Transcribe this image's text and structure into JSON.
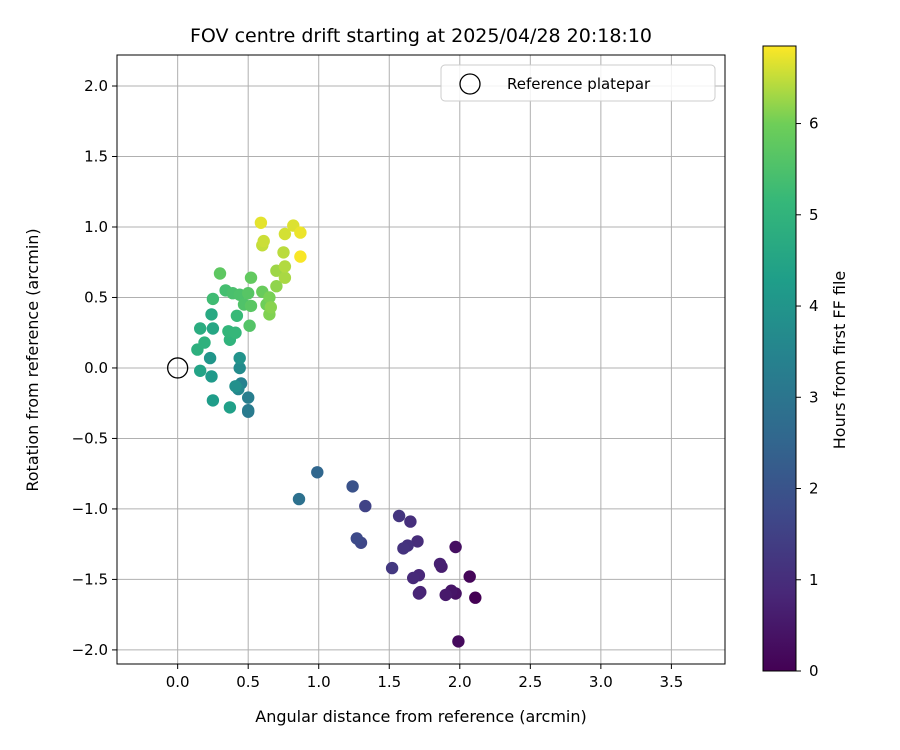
{
  "chart_data": {
    "type": "scatter",
    "title": "FOV centre drift starting at 2025/04/28 20:18:10",
    "xlabel": "Angular distance from reference (arcmin)",
    "ylabel": "Rotation from reference (arcmin)",
    "xlim": [
      -0.43,
      3.88
    ],
    "ylim": [
      -2.1,
      2.22
    ],
    "xticks": [
      0.0,
      0.5,
      1.0,
      1.5,
      2.0,
      2.5,
      3.0,
      3.5
    ],
    "xtick_labels": [
      "0.0",
      "0.5",
      "1.0",
      "1.5",
      "2.0",
      "2.5",
      "3.0",
      "3.5"
    ],
    "yticks": [
      2.0,
      1.5,
      1.0,
      0.5,
      0.0,
      -0.5,
      -1.0,
      -1.5,
      -2.0
    ],
    "ytick_labels": [
      "2.0",
      "1.5",
      "1.0",
      "0.5",
      "0.0",
      "−0.5",
      "−1.0",
      "−1.5",
      "−2.0"
    ],
    "grid": true,
    "legend": {
      "position": "top-right",
      "entries": [
        "Reference platepar"
      ]
    },
    "reference_point": {
      "name": "Reference platepar",
      "x": 0.0,
      "y": 0.0
    },
    "colorbar": {
      "label": "Hours from first FF file",
      "colormap": "viridis",
      "range": [
        0,
        6.85
      ],
      "ticks": [
        0,
        1,
        2,
        3,
        4,
        5,
        6
      ],
      "tick_labels": [
        "0",
        "1",
        "2",
        "3",
        "4",
        "5",
        "6"
      ]
    },
    "points": [
      {
        "x": 2.11,
        "y": -1.63,
        "c": 0.0
      },
      {
        "x": 2.07,
        "y": -1.48,
        "c": 0.12
      },
      {
        "x": 1.99,
        "y": -1.94,
        "c": 0.22
      },
      {
        "x": 1.97,
        "y": -1.27,
        "c": 0.3
      },
      {
        "x": 1.97,
        "y": -1.6,
        "c": 0.36
      },
      {
        "x": 1.94,
        "y": -1.58,
        "c": 0.45
      },
      {
        "x": 1.9,
        "y": -1.61,
        "c": 0.55
      },
      {
        "x": 1.87,
        "y": -1.41,
        "c": 0.62
      },
      {
        "x": 1.86,
        "y": -1.39,
        "c": 0.68
      },
      {
        "x": 1.72,
        "y": -1.59,
        "c": 0.75
      },
      {
        "x": 1.71,
        "y": -1.6,
        "c": 0.8
      },
      {
        "x": 1.71,
        "y": -1.47,
        "c": 0.86
      },
      {
        "x": 1.67,
        "y": -1.49,
        "c": 0.92
      },
      {
        "x": 1.7,
        "y": -1.23,
        "c": 0.98
      },
      {
        "x": 1.65,
        "y": -1.09,
        "c": 1.04
      },
      {
        "x": 1.63,
        "y": -1.26,
        "c": 1.1
      },
      {
        "x": 1.6,
        "y": -1.28,
        "c": 1.15
      },
      {
        "x": 1.57,
        "y": -1.05,
        "c": 1.2
      },
      {
        "x": 1.52,
        "y": -1.42,
        "c": 1.28
      },
      {
        "x": 1.33,
        "y": -0.98,
        "c": 1.55
      },
      {
        "x": 1.3,
        "y": -1.24,
        "c": 1.65
      },
      {
        "x": 1.27,
        "y": -1.21,
        "c": 1.75
      },
      {
        "x": 1.24,
        "y": -0.84,
        "c": 1.95
      },
      {
        "x": 0.99,
        "y": -0.74,
        "c": 2.55
      },
      {
        "x": 0.86,
        "y": -0.93,
        "c": 2.85
      },
      {
        "x": 0.5,
        "y": -0.31,
        "c": 3.1
      },
      {
        "x": 0.5,
        "y": -0.3,
        "c": 3.2
      },
      {
        "x": 0.5,
        "y": -0.21,
        "c": 3.3
      },
      {
        "x": 0.45,
        "y": -0.11,
        "c": 3.4
      },
      {
        "x": 0.43,
        "y": -0.15,
        "c": 3.55
      },
      {
        "x": 0.44,
        "y": -0.0,
        "c": 3.7
      },
      {
        "x": 0.41,
        "y": -0.13,
        "c": 3.85
      },
      {
        "x": 0.44,
        "y": 0.07,
        "c": 3.95
      },
      {
        "x": 0.23,
        "y": 0.07,
        "c": 4.05
      },
      {
        "x": 0.24,
        "y": -0.06,
        "c": 4.15
      },
      {
        "x": 0.25,
        "y": -0.23,
        "c": 4.25
      },
      {
        "x": 0.37,
        "y": -0.28,
        "c": 4.35
      },
      {
        "x": 0.16,
        "y": -0.02,
        "c": 4.45
      },
      {
        "x": 0.25,
        "y": 0.28,
        "c": 4.55
      },
      {
        "x": 0.24,
        "y": 0.38,
        "c": 4.65
      },
      {
        "x": 0.16,
        "y": 0.28,
        "c": 4.75
      },
      {
        "x": 0.14,
        "y": 0.13,
        "c": 4.85
      },
      {
        "x": 0.19,
        "y": 0.18,
        "c": 4.92
      },
      {
        "x": 0.37,
        "y": 0.2,
        "c": 5.0
      },
      {
        "x": 0.36,
        "y": 0.26,
        "c": 5.07
      },
      {
        "x": 0.41,
        "y": 0.25,
        "c": 5.12
      },
      {
        "x": 0.42,
        "y": 0.37,
        "c": 5.2
      },
      {
        "x": 0.25,
        "y": 0.49,
        "c": 5.3
      },
      {
        "x": 0.34,
        "y": 0.55,
        "c": 5.38
      },
      {
        "x": 0.39,
        "y": 0.53,
        "c": 5.45
      },
      {
        "x": 0.44,
        "y": 0.52,
        "c": 5.5
      },
      {
        "x": 0.47,
        "y": 0.45,
        "c": 5.55
      },
      {
        "x": 0.51,
        "y": 0.3,
        "c": 5.6
      },
      {
        "x": 0.5,
        "y": 0.53,
        "c": 5.65
      },
      {
        "x": 0.52,
        "y": 0.44,
        "c": 5.7
      },
      {
        "x": 0.3,
        "y": 0.67,
        "c": 5.75
      },
      {
        "x": 0.52,
        "y": 0.64,
        "c": 5.82
      },
      {
        "x": 0.6,
        "y": 0.54,
        "c": 5.9
      },
      {
        "x": 0.63,
        "y": 0.45,
        "c": 5.98
      },
      {
        "x": 0.65,
        "y": 0.5,
        "c": 6.05
      },
      {
        "x": 0.65,
        "y": 0.38,
        "c": 6.1
      },
      {
        "x": 0.66,
        "y": 0.43,
        "c": 6.15
      },
      {
        "x": 0.7,
        "y": 0.58,
        "c": 6.2
      },
      {
        "x": 0.7,
        "y": 0.69,
        "c": 6.28
      },
      {
        "x": 0.76,
        "y": 0.64,
        "c": 6.35
      },
      {
        "x": 0.76,
        "y": 0.72,
        "c": 6.4
      },
      {
        "x": 0.75,
        "y": 0.82,
        "c": 6.45
      },
      {
        "x": 0.6,
        "y": 0.87,
        "c": 6.5
      },
      {
        "x": 0.61,
        "y": 0.9,
        "c": 6.55
      },
      {
        "x": 0.76,
        "y": 0.95,
        "c": 6.6
      },
      {
        "x": 0.82,
        "y": 1.01,
        "c": 6.65
      },
      {
        "x": 0.59,
        "y": 1.03,
        "c": 6.7
      },
      {
        "x": 0.87,
        "y": 0.96,
        "c": 6.75
      },
      {
        "x": 0.87,
        "y": 0.79,
        "c": 6.82
      }
    ]
  }
}
